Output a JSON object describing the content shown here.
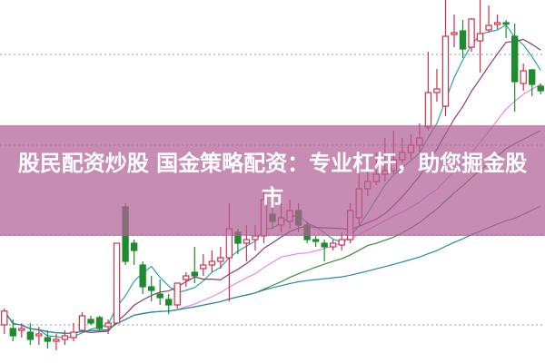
{
  "title": "股民配资炒股 国金策略配资：专业杠杆，助您掘金股市",
  "chart_data": {
    "type": "candlestick",
    "title": "股民配资炒股 国金策略配资：专业杠杆，助您掘金股市",
    "xlabel": "",
    "ylabel": "",
    "ylim": [
      0,
      100
    ],
    "grid": "dotted horizontal",
    "gridlines": [
      10.5,
      35.25,
      60,
      85
    ],
    "moving_averages": [
      5,
      10,
      20,
      30,
      60
    ],
    "colors": {
      "up": "#d0304a",
      "down": "#1e8c2e",
      "ma": [
        "#2aa6a6",
        "#8a3c6e",
        "#e48ae4",
        "#3c8a3c",
        "#2a8ca0"
      ],
      "grid": "#999999",
      "banner": "#c486ae"
    },
    "candles": [
      [
        10.5,
        14.3,
        15,
        8
      ],
      [
        9.5,
        7.5,
        12,
        6
      ],
      [
        9,
        9.5,
        11,
        7
      ],
      [
        8.5,
        6.5,
        11,
        5
      ],
      [
        7.5,
        8,
        10,
        5
      ],
      [
        7,
        6,
        9,
        4
      ],
      [
        6,
        6.5,
        8,
        3.5
      ],
      [
        6.5,
        7.5,
        9,
        5
      ],
      [
        7,
        8.5,
        11,
        6
      ],
      [
        9,
        13,
        14,
        8.5
      ],
      [
        12,
        11,
        13,
        10.5
      ],
      [
        12.5,
        9.5,
        13,
        9
      ],
      [
        10,
        11,
        12,
        8
      ],
      [
        11,
        33,
        33,
        11
      ],
      [
        43,
        28,
        44,
        27
      ],
      [
        33,
        31,
        34,
        27
      ],
      [
        27,
        21,
        28,
        19
      ],
      [
        21,
        20,
        24,
        17
      ],
      [
        19,
        18,
        23,
        16
      ],
      [
        17.5,
        16,
        19,
        13.5
      ],
      [
        16,
        22,
        22,
        15
      ],
      [
        23,
        24,
        25,
        21
      ],
      [
        25,
        24,
        32,
        22
      ],
      [
        26,
        27,
        30,
        24
      ],
      [
        27,
        28,
        31,
        25
      ],
      [
        28,
        29,
        32,
        26
      ],
      [
        29,
        37,
        44,
        17
      ],
      [
        36,
        33,
        37,
        30
      ],
      [
        33,
        34,
        38,
        28
      ],
      [
        34,
        35,
        38,
        31
      ],
      [
        35,
        45,
        47,
        33
      ],
      [
        41,
        39,
        43,
        37
      ],
      [
        38,
        40,
        44,
        36
      ],
      [
        39,
        42,
        45,
        37
      ],
      [
        42,
        38,
        44,
        36
      ],
      [
        38,
        34,
        39,
        33
      ],
      [
        34,
        33.5,
        35,
        32
      ],
      [
        33,
        32,
        34,
        28
      ],
      [
        32,
        33,
        34,
        31
      ],
      [
        32.5,
        34,
        36,
        31
      ],
      [
        34,
        42,
        44,
        33
      ],
      [
        40,
        48,
        56,
        38
      ],
      [
        48,
        50,
        57,
        46
      ],
      [
        50,
        52,
        58,
        49
      ],
      [
        52,
        53,
        62,
        50
      ],
      [
        53,
        56,
        64,
        52
      ],
      [
        56,
        58,
        62,
        55
      ],
      [
        58,
        60,
        63,
        56
      ],
      [
        60,
        62,
        66,
        58
      ],
      [
        65,
        74.5,
        85.75,
        64
      ],
      [
        74.5,
        75.5,
        81,
        72
      ],
      [
        70.75,
        90,
        100,
        68
      ],
      [
        90.5,
        91,
        96,
        87
      ],
      [
        91.5,
        86.5,
        94.5,
        84
      ],
      [
        87,
        94.75,
        95,
        85.75
      ],
      [
        88.75,
        90.75,
        100,
        80
      ],
      [
        91.75,
        93,
        98.5,
        91
      ],
      [
        93.25,
        93.75,
        96,
        92
      ],
      [
        93.75,
        93.5,
        94.5,
        89.5
      ],
      [
        90,
        77.5,
        93.5,
        69.25
      ],
      [
        77,
        80.5,
        82.5,
        75
      ],
      [
        80.75,
        76.75,
        81,
        73.5
      ],
      [
        76.25,
        75,
        77,
        74
      ]
    ],
    "candle_fields": [
      "open",
      "close",
      "high",
      "low"
    ]
  }
}
